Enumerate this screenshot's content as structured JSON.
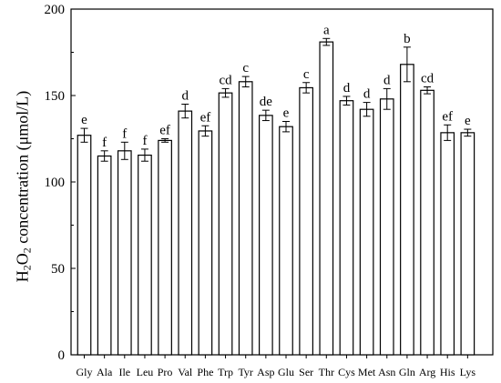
{
  "chart_data": {
    "type": "bar",
    "ylabel": {
      "h": "H",
      "o": "O",
      "sub2a": "2",
      "sub2b": "2",
      "rest": " concentration (μmol/L)"
    },
    "ylim": [
      0,
      200
    ],
    "yticks": [
      0,
      50,
      100,
      150,
      200
    ],
    "categories": [
      "Gly",
      "Ala",
      "Ile",
      "Leu",
      "Pro",
      "Val",
      "Phe",
      "Trp",
      "Tyr",
      "Asp",
      "Glu",
      "Ser",
      "Thr",
      "Cys",
      "Met",
      "Asn",
      "Gln",
      "Arg",
      "His",
      "Lys"
    ],
    "values": [
      127,
      115,
      118,
      115.5,
      124,
      141,
      129.5,
      151.5,
      158,
      138.5,
      132,
      154.5,
      181,
      147,
      142,
      148,
      168,
      153,
      128.5,
      128.5
    ],
    "errors": [
      4,
      3,
      5,
      3.5,
      1,
      4,
      3,
      2.5,
      3,
      3,
      3,
      3,
      2,
      2.5,
      4,
      6,
      10,
      2,
      4.5,
      2
    ],
    "letters": [
      "e",
      "f",
      "f",
      "f",
      "ef",
      "d",
      "ef",
      "cd",
      "c",
      "de",
      "e",
      "c",
      "a",
      "d",
      "d",
      "d",
      "b",
      "cd",
      "ef",
      "e"
    ],
    "bar_color": "#ffffff",
    "edge_color": "#000000"
  }
}
